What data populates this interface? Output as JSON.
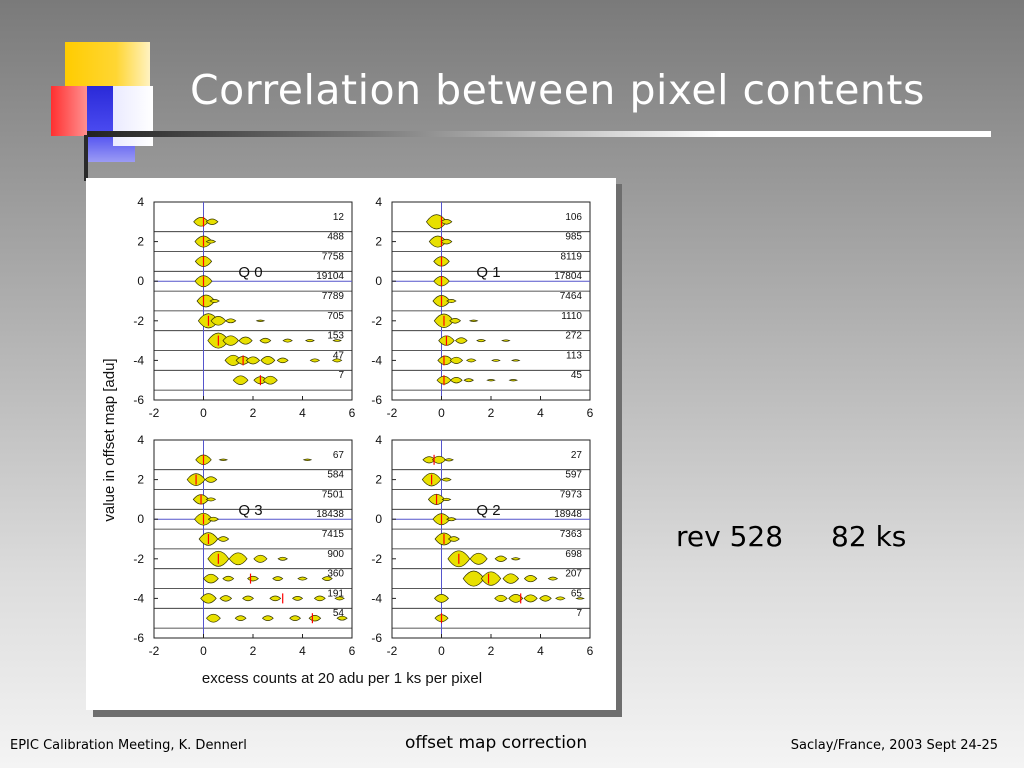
{
  "slide": {
    "title": "Correlation between pixel contents",
    "annotation_rev": "rev 528",
    "annotation_time": "82 ks",
    "footer_left": "EPIC Calibration Meeting, K. Dennerl",
    "footer_center": "offset map correction",
    "footer_right": "Saclay/France, 2003 Sept 24-25",
    "colors": {
      "violin_fill": "#e8e000",
      "violin_outline": "#333300",
      "zero_line": "#5555cc",
      "median_mark": "#ff0000"
    }
  },
  "chart_data": {
    "type": "violin",
    "xlabel": "excess counts at 20 adu per 1 ks per pixel",
    "ylabel": "value in offset map [adu]",
    "xlim": [
      -2,
      6
    ],
    "ylim": [
      -6,
      4
    ],
    "xticks": [
      "-2",
      "0",
      "2",
      "4",
      "6"
    ],
    "yticks": [
      "4",
      "2",
      "0",
      "-2",
      "-4",
      "-6"
    ],
    "rows_y": [
      3,
      2,
      1,
      0,
      -1,
      -2,
      -3,
      -4,
      -5
    ],
    "panels": [
      {
        "name": "Q 0",
        "counts": [
          "12",
          "488",
          "7758",
          "19104",
          "7789",
          "705",
          "153",
          "47",
          "7"
        ],
        "blobs": [
          [
            [
              -0.1,
              0.55
            ],
            [
              0.35,
              0.35
            ]
          ],
          [
            [
              0.0,
              0.7
            ],
            [
              0.3,
              0.2
            ]
          ],
          [
            [
              0.0,
              0.65
            ]
          ],
          [
            [
              0.0,
              0.7
            ]
          ],
          [
            [
              0.1,
              0.75
            ],
            [
              0.45,
              0.2
            ]
          ],
          [
            [
              0.2,
              0.9
            ],
            [
              0.6,
              0.55
            ],
            [
              1.1,
              0.25
            ],
            [
              2.3,
              0.1
            ]
          ],
          [
            [
              0.6,
              0.95
            ],
            [
              1.1,
              0.6
            ],
            [
              1.7,
              0.45
            ],
            [
              2.5,
              0.3
            ],
            [
              3.4,
              0.2
            ],
            [
              4.3,
              0.15
            ],
            [
              5.4,
              0.12
            ]
          ],
          [
            [
              1.2,
              0.65
            ],
            [
              1.6,
              0.5
            ],
            [
              2.0,
              0.45
            ],
            [
              2.6,
              0.5
            ],
            [
              3.2,
              0.3
            ],
            [
              4.5,
              0.2
            ],
            [
              5.4,
              0.2
            ]
          ],
          [
            [
              1.5,
              0.55
            ],
            [
              2.3,
              0.45
            ],
            [
              2.7,
              0.5
            ]
          ]
        ],
        "medians": [
          0.0,
          0.0,
          0.0,
          0.0,
          0.0,
          0.2,
          0.6,
          1.6,
          2.3
        ]
      },
      {
        "name": "Q 1",
        "counts": [
          "106",
          "985",
          "8119",
          "17804",
          "7464",
          "1110",
          "272",
          "113",
          "45"
        ],
        "blobs": [
          [
            [
              -0.2,
              0.9
            ],
            [
              0.2,
              0.3
            ]
          ],
          [
            [
              -0.15,
              0.7
            ],
            [
              0.2,
              0.3
            ]
          ],
          [
            [
              0.0,
              0.6
            ]
          ],
          [
            [
              0.0,
              0.6
            ]
          ],
          [
            [
              0.0,
              0.7
            ],
            [
              0.4,
              0.2
            ]
          ],
          [
            [
              0.1,
              0.85
            ],
            [
              0.55,
              0.3
            ],
            [
              1.3,
              0.1
            ]
          ],
          [
            [
              0.2,
              0.6
            ],
            [
              0.8,
              0.35
            ],
            [
              1.6,
              0.15
            ],
            [
              2.6,
              0.1
            ]
          ],
          [
            [
              0.15,
              0.55
            ],
            [
              0.6,
              0.4
            ],
            [
              1.2,
              0.2
            ],
            [
              2.2,
              0.12
            ],
            [
              3.0,
              0.1
            ]
          ],
          [
            [
              0.1,
              0.5
            ],
            [
              0.6,
              0.35
            ],
            [
              1.1,
              0.2
            ],
            [
              2.0,
              0.1
            ],
            [
              2.9,
              0.1
            ]
          ]
        ],
        "medians": [
          0.0,
          0.0,
          0.0,
          0.0,
          0.0,
          0.1,
          0.2,
          0.1,
          0.1
        ]
      },
      {
        "name": "Q 3",
        "counts": [
          "67",
          "584",
          "7501",
          "18438",
          "7415",
          "900",
          "360",
          "191",
          "54"
        ],
        "blobs": [
          [
            [
              0.0,
              0.6
            ],
            [
              0.8,
              0.1
            ],
            [
              4.2,
              0.1
            ]
          ],
          [
            [
              -0.3,
              0.75
            ],
            [
              0.3,
              0.35
            ]
          ],
          [
            [
              -0.1,
              0.6
            ],
            [
              0.3,
              0.2
            ]
          ],
          [
            [
              0.0,
              0.75
            ],
            [
              0.4,
              0.25
            ]
          ],
          [
            [
              0.2,
              0.8
            ],
            [
              0.8,
              0.3
            ]
          ],
          [
            [
              0.6,
              0.95
            ],
            [
              1.4,
              0.75
            ],
            [
              2.3,
              0.45
            ],
            [
              3.2,
              0.2
            ]
          ],
          [
            [
              0.3,
              0.55
            ],
            [
              1.0,
              0.3
            ],
            [
              2.0,
              0.3
            ],
            [
              3.0,
              0.25
            ],
            [
              4.0,
              0.2
            ],
            [
              5.0,
              0.25
            ]
          ],
          [
            [
              0.2,
              0.6
            ],
            [
              0.9,
              0.35
            ],
            [
              1.8,
              0.3
            ],
            [
              2.9,
              0.3
            ],
            [
              3.8,
              0.25
            ],
            [
              4.7,
              0.3
            ],
            [
              5.5,
              0.2
            ]
          ],
          [
            [
              0.4,
              0.5
            ],
            [
              1.5,
              0.3
            ],
            [
              2.6,
              0.3
            ],
            [
              3.7,
              0.3
            ],
            [
              4.5,
              0.35
            ],
            [
              5.6,
              0.25
            ]
          ]
        ],
        "medians": [
          0.0,
          -0.3,
          -0.1,
          0.0,
          0.2,
          0.6,
          1.9,
          3.2,
          4.4
        ]
      },
      {
        "name": "Q 2",
        "counts": [
          "27",
          "597",
          "7973",
          "18948",
          "7363",
          "698",
          "207",
          "65",
          "7"
        ],
        "blobs": [
          [
            [
              -0.5,
              0.4
            ],
            [
              -0.1,
              0.45
            ],
            [
              0.3,
              0.15
            ]
          ],
          [
            [
              -0.4,
              0.8
            ],
            [
              0.2,
              0.2
            ]
          ],
          [
            [
              -0.2,
              0.65
            ],
            [
              0.2,
              0.15
            ]
          ],
          [
            [
              0.0,
              0.7
            ],
            [
              0.4,
              0.2
            ]
          ],
          [
            [
              0.1,
              0.75
            ],
            [
              0.5,
              0.3
            ]
          ],
          [
            [
              0.7,
              1.0
            ],
            [
              1.5,
              0.7
            ],
            [
              2.4,
              0.35
            ],
            [
              3.0,
              0.15
            ]
          ],
          [
            [
              1.3,
              0.95
            ],
            [
              2.0,
              0.85
            ],
            [
              2.8,
              0.6
            ],
            [
              3.6,
              0.4
            ],
            [
              4.5,
              0.2
            ]
          ],
          [
            [
              0.0,
              0.5
            ],
            [
              2.4,
              0.4
            ],
            [
              3.0,
              0.5
            ],
            [
              3.6,
              0.45
            ],
            [
              4.2,
              0.35
            ],
            [
              4.8,
              0.2
            ],
            [
              5.6,
              0.1
            ]
          ],
          [
            [
              0.0,
              0.45
            ]
          ]
        ],
        "medians": [
          -0.3,
          -0.4,
          -0.2,
          0.0,
          0.1,
          0.7,
          1.9,
          3.2,
          0.0
        ]
      }
    ]
  }
}
